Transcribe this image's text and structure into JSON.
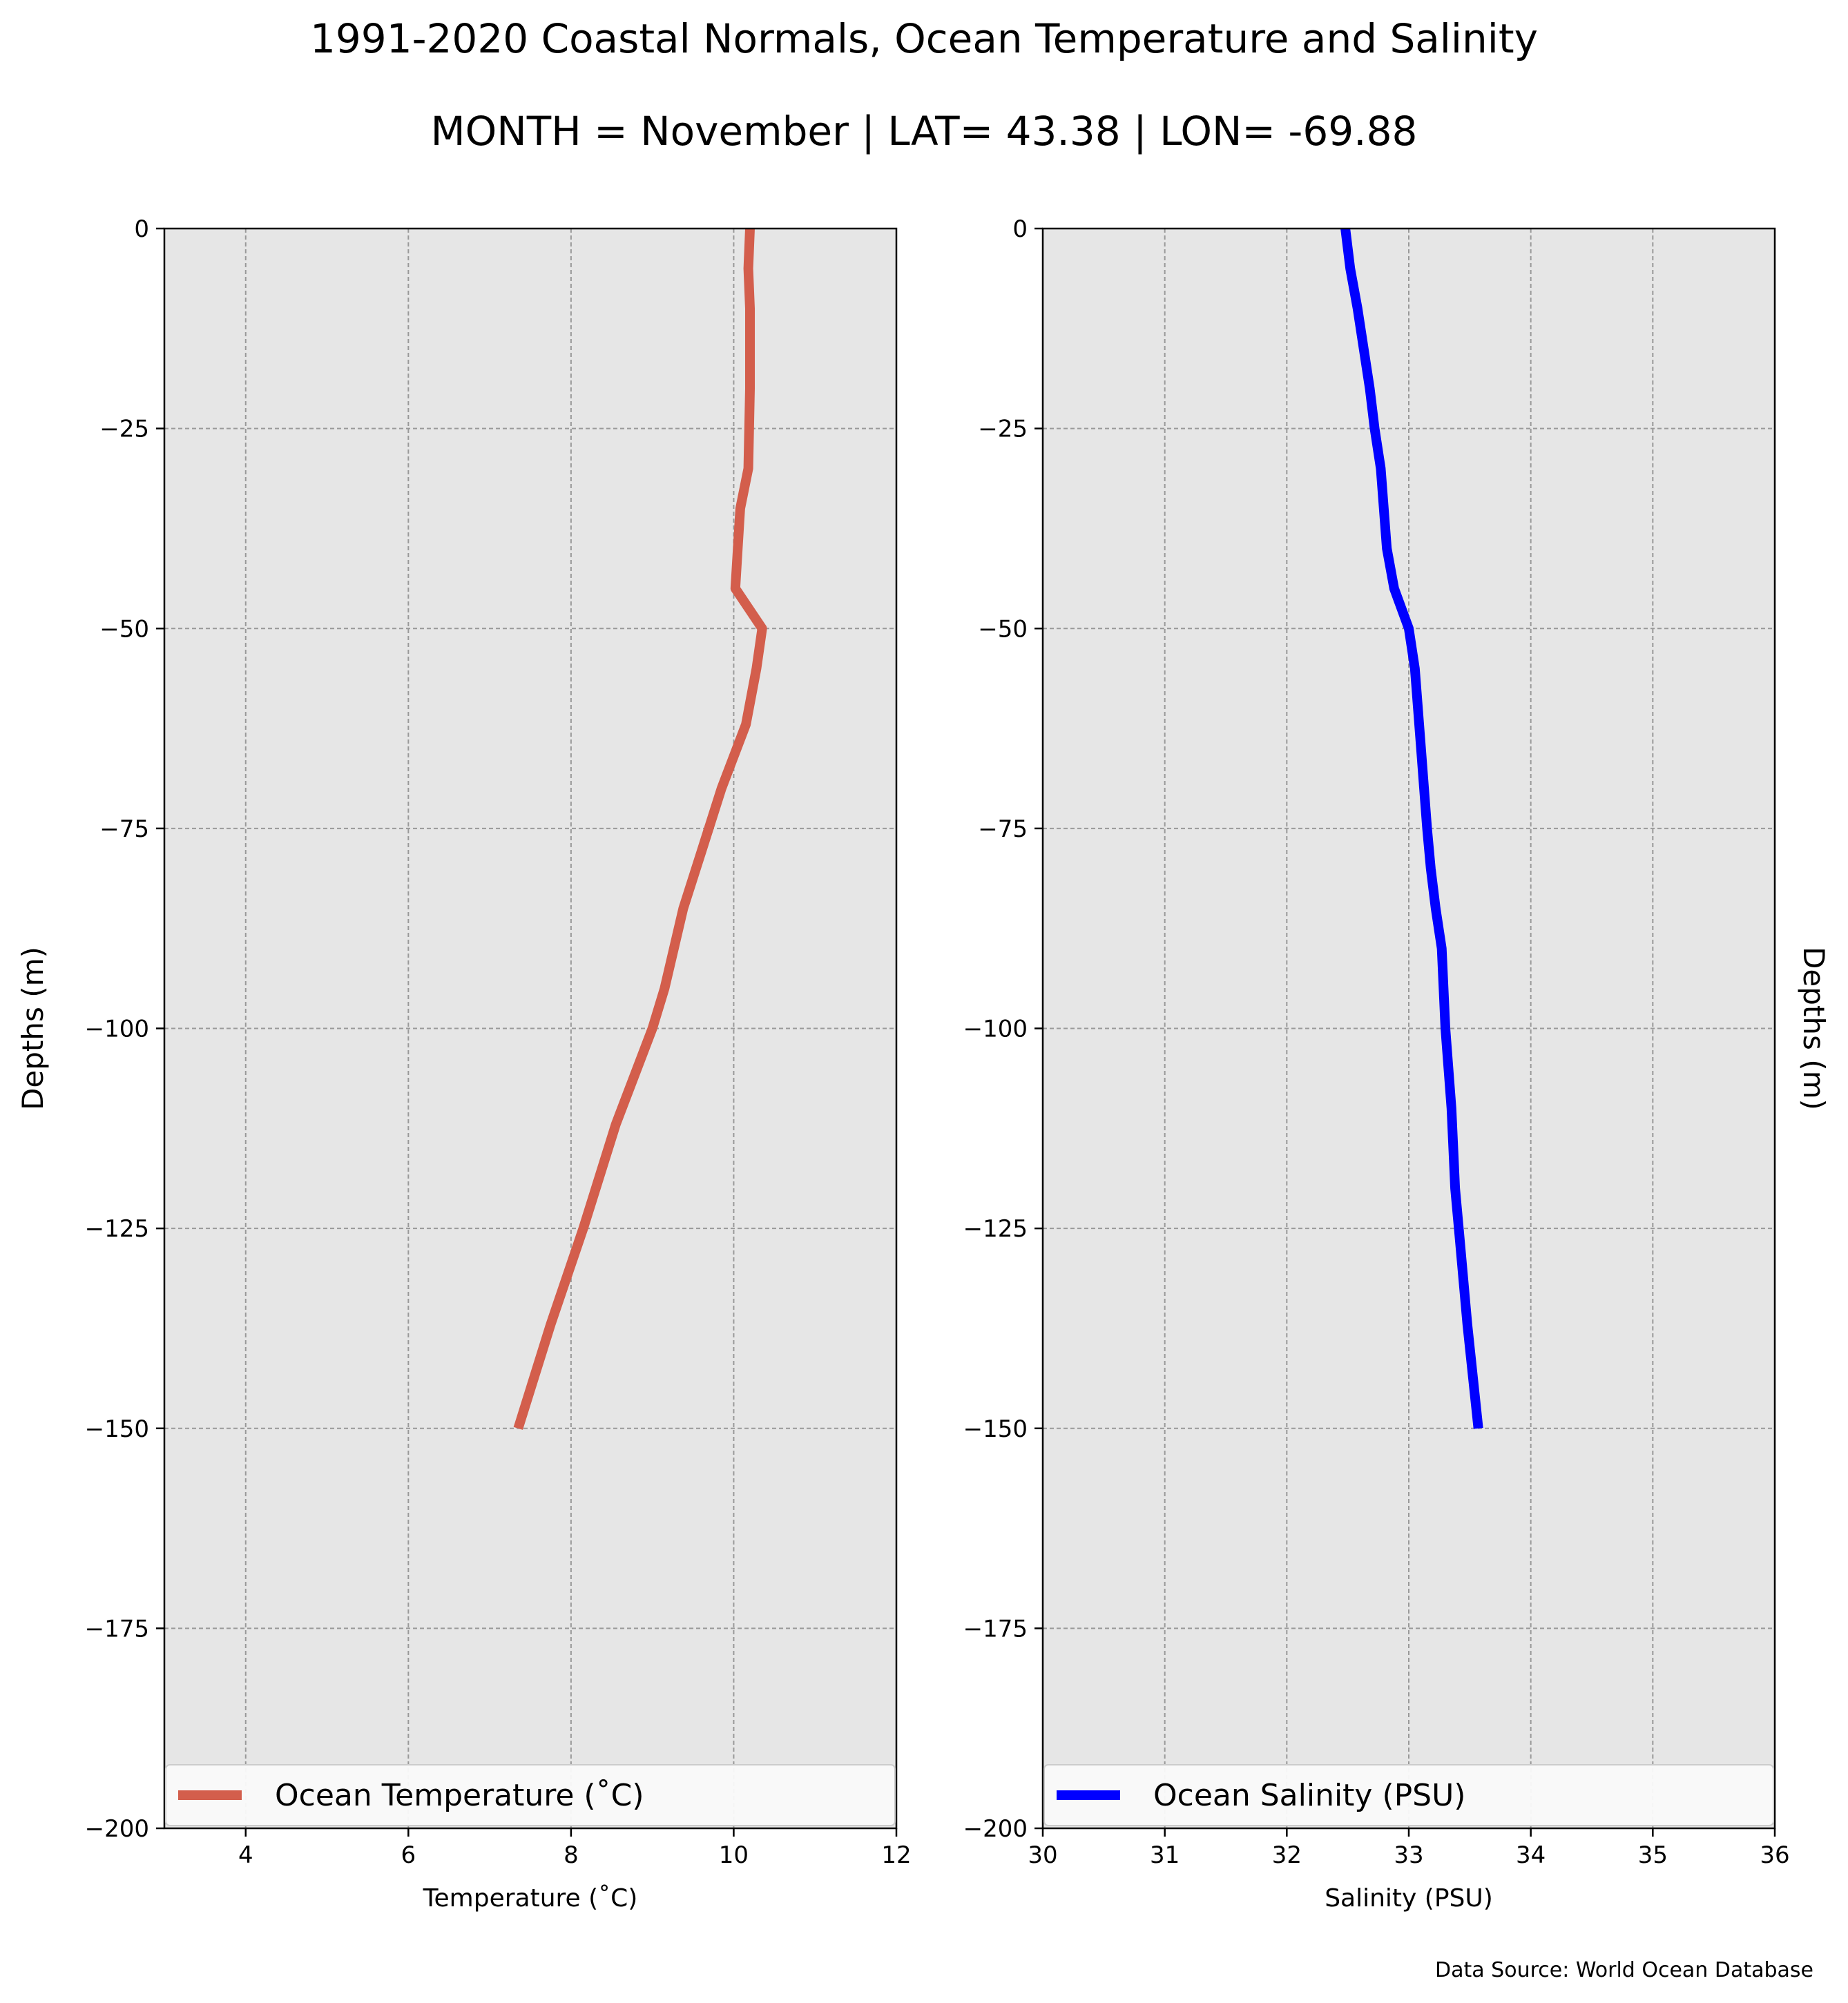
{
  "figure": {
    "title": "1991-2020 Coastal Normals, Ocean Temperature and Salinity",
    "subtitle": "MONTH = November | LAT= 43.38 | LON= -69.88",
    "source": "Data Source: World Ocean Database"
  },
  "colors": {
    "temperature": "#d35e4c",
    "salinity": "#0000ff",
    "panel_background": "#e6e6e6",
    "grid": "#999999"
  },
  "chart_data": [
    {
      "type": "line",
      "panel": "left",
      "xlabel": "Temperature ($^\\circ$C)",
      "xlabel_display": "Temperature (˚C)",
      "ylabel": "Depths (m)",
      "ylabel_side": "left",
      "xlim": [
        3,
        12
      ],
      "ylim": [
        -200,
        0
      ],
      "xticks": [
        4,
        6,
        8,
        10,
        12
      ],
      "yticks": [
        0,
        -25,
        -50,
        -75,
        -100,
        -125,
        -150,
        -175,
        -200
      ],
      "grid": true,
      "legend_placement": "lower center",
      "series": [
        {
          "name": "Ocean Temperature (˚C)",
          "color": "#d35e4c",
          "points": [
            {
              "x": 10.2,
              "y": 0
            },
            {
              "x": 10.18,
              "y": -5
            },
            {
              "x": 10.2,
              "y": -10
            },
            {
              "x": 10.2,
              "y": -20
            },
            {
              "x": 10.18,
              "y": -30
            },
            {
              "x": 10.08,
              "y": -35
            },
            {
              "x": 10.05,
              "y": -40
            },
            {
              "x": 10.02,
              "y": -45
            },
            {
              "x": 10.35,
              "y": -50
            },
            {
              "x": 10.28,
              "y": -55
            },
            {
              "x": 10.15,
              "y": -62
            },
            {
              "x": 9.85,
              "y": -70
            },
            {
              "x": 9.6,
              "y": -78
            },
            {
              "x": 9.38,
              "y": -85
            },
            {
              "x": 9.15,
              "y": -95
            },
            {
              "x": 9.0,
              "y": -100
            },
            {
              "x": 8.55,
              "y": -112
            },
            {
              "x": 8.15,
              "y": -125
            },
            {
              "x": 7.75,
              "y": -137
            },
            {
              "x": 7.35,
              "y": -150
            }
          ]
        }
      ]
    },
    {
      "type": "line",
      "panel": "right",
      "xlabel": "Salinity (PSU)",
      "ylabel": "Depths (m)",
      "ylabel_side": "right",
      "xlim": [
        30,
        36
      ],
      "ylim": [
        -200,
        0
      ],
      "xticks": [
        30,
        31,
        32,
        33,
        34,
        35,
        36
      ],
      "yticks": [
        0,
        -25,
        -50,
        -75,
        -100,
        -125,
        -150,
        -175,
        -200
      ],
      "grid": true,
      "legend_placement": "lower center",
      "series": [
        {
          "name": "Ocean Salinity (PSU)",
          "color": "#0000ff",
          "points": [
            {
              "x": 32.48,
              "y": 0
            },
            {
              "x": 32.52,
              "y": -5
            },
            {
              "x": 32.58,
              "y": -10
            },
            {
              "x": 32.68,
              "y": -20
            },
            {
              "x": 32.72,
              "y": -25
            },
            {
              "x": 32.77,
              "y": -30
            },
            {
              "x": 32.82,
              "y": -40
            },
            {
              "x": 32.88,
              "y": -45
            },
            {
              "x": 33.0,
              "y": -50
            },
            {
              "x": 33.05,
              "y": -55
            },
            {
              "x": 33.1,
              "y": -65
            },
            {
              "x": 33.15,
              "y": -75
            },
            {
              "x": 33.18,
              "y": -80
            },
            {
              "x": 33.22,
              "y": -85
            },
            {
              "x": 33.27,
              "y": -90
            },
            {
              "x": 33.3,
              "y": -100
            },
            {
              "x": 33.35,
              "y": -110
            },
            {
              "x": 33.38,
              "y": -120
            },
            {
              "x": 33.41,
              "y": -125
            },
            {
              "x": 33.48,
              "y": -137
            },
            {
              "x": 33.57,
              "y": -150
            }
          ]
        }
      ]
    }
  ]
}
